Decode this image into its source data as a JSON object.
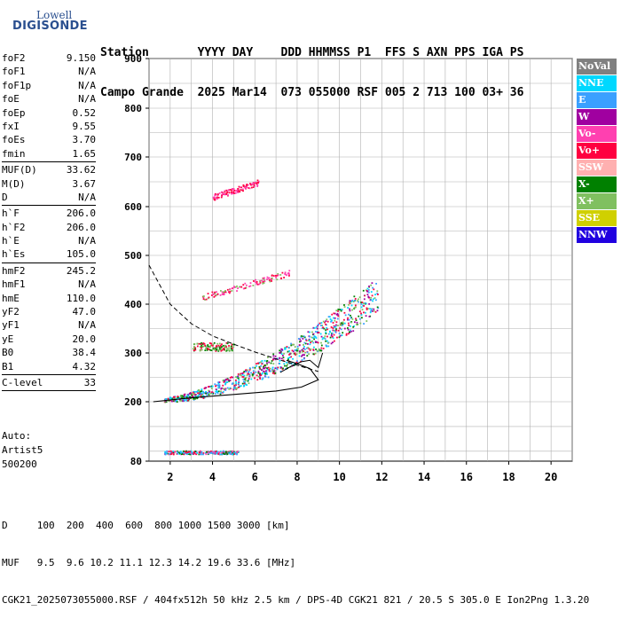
{
  "logo": {
    "line1": "Lowell",
    "line2": "DIGISONDE"
  },
  "header": {
    "row1": "Station       YYYY DAY    DDD HHMMSS P1  FFS S AXN PPS IGA PS",
    "row2": "Campo Grande  2025 Mar14  073 055000 RSF 005 2 713 100 03+ 36"
  },
  "params": [
    {
      "name": "foF2",
      "value": "9.150"
    },
    {
      "name": "foF1",
      "value": "N/A"
    },
    {
      "name": "foF1p",
      "value": "N/A"
    },
    {
      "name": "foE",
      "value": "N/A"
    },
    {
      "name": "foEp",
      "value": "0.52"
    },
    {
      "name": "fxI",
      "value": "9.55"
    },
    {
      "name": "foEs",
      "value": "3.70"
    },
    {
      "name": "fmin",
      "value": "1.65"
    },
    {
      "sep": true
    },
    {
      "name": "MUF(D)",
      "value": "33.62"
    },
    {
      "name": "M(D)",
      "value": "3.67"
    },
    {
      "name": "D",
      "value": "N/A"
    },
    {
      "sep": true
    },
    {
      "name": "h`F",
      "value": "206.0"
    },
    {
      "name": "h`F2",
      "value": "206.0"
    },
    {
      "name": "h`E",
      "value": "N/A"
    },
    {
      "name": "h`Es",
      "value": "105.0"
    },
    {
      "sep": true
    },
    {
      "name": "hmF2",
      "value": "245.2"
    },
    {
      "name": "hmF1",
      "value": "N/A"
    },
    {
      "name": "hmE",
      "value": "110.0"
    },
    {
      "name": "yF2",
      "value": "47.0"
    },
    {
      "name": "yF1",
      "value": "N/A"
    },
    {
      "name": "yE",
      "value": "20.0"
    },
    {
      "name": "B0",
      "value": "38.4"
    },
    {
      "name": "B1",
      "value": "4.32"
    },
    {
      "sep": true
    },
    {
      "name": "C-level",
      "value": "33"
    },
    {
      "sep": true
    }
  ],
  "auto": {
    "l1": "Auto:",
    "l2": "Artist5",
    "l3": "500200"
  },
  "legend": [
    {
      "label": "NoVal",
      "color": "#808080"
    },
    {
      "label": "NNE",
      "color": "#00d8ff"
    },
    {
      "label": "E",
      "color": "#3aa0ff"
    },
    {
      "label": "W",
      "color": "#a000a0"
    },
    {
      "label": "Vo-",
      "color": "#ff40b0"
    },
    {
      "label": "Vo+",
      "color": "#ff0040"
    },
    {
      "label": "SSW",
      "color": "#ffb0b0"
    },
    {
      "label": "X-",
      "color": "#008000"
    },
    {
      "label": "X+",
      "color": "#80c060"
    },
    {
      "label": "SSE",
      "color": "#d0d000"
    },
    {
      "label": "NNW",
      "color": "#2000e0"
    }
  ],
  "footer": {
    "row1": "D     100  200  400  600  800 1000 1500 3000 [km]",
    "row2": "MUF   9.5  9.6 10.2 11.1 12.3 14.2 19.6 33.6 [MHz]",
    "row3": "CGK21_2025073055000.RSF / 404fx512h 50 kHz 2.5 km / DPS-4D CGK21 821 / 20.5 S 305.0 E Ion2Png 1.3.20"
  },
  "chart_data": {
    "type": "scatter",
    "xlim": [
      1,
      21
    ],
    "ylim": [
      80,
      900
    ],
    "xticks": [
      2,
      4,
      6,
      8,
      10,
      12,
      14,
      16,
      18,
      20
    ],
    "yticks": [
      80,
      200,
      300,
      400,
      500,
      600,
      700,
      800,
      900
    ],
    "grid": true,
    "clusters": [
      {
        "name": "Es echo",
        "x": [
          1.7,
          5.2
        ],
        "y": [
          95,
          102
        ],
        "colors": [
          "#ff0040",
          "#00d8ff",
          "#3aa0ff",
          "#008000",
          "#ff40b0"
        ]
      },
      {
        "name": "F-layer O trace",
        "x": [
          1.7,
          11.8
        ],
        "y": [
          205,
          420
        ],
        "colors": [
          "#ff0040",
          "#008000",
          "#80c060",
          "#a000a0",
          "#3aa0ff",
          "#00d8ff"
        ]
      },
      {
        "name": "second hop Es",
        "x": [
          3.0,
          5.0
        ],
        "y": [
          305,
          322
        ],
        "colors": [
          "#ff0040",
          "#80c060",
          "#008000"
        ]
      },
      {
        "name": "second hop F",
        "x": [
          3.5,
          7.6
        ],
        "y": [
          415,
          465
        ],
        "colors": [
          "#ff0040",
          "#80c060",
          "#ff40b0"
        ]
      },
      {
        "name": "third hop",
        "x": [
          4.0,
          6.2
        ],
        "y": [
          620,
          650
        ],
        "colors": [
          "#ff0040",
          "#ff40b0"
        ]
      }
    ],
    "profile_curve": [
      [
        1.2,
        200
      ],
      [
        3,
        208
      ],
      [
        5,
        215
      ],
      [
        7,
        222
      ],
      [
        8.2,
        230
      ],
      [
        9.0,
        245
      ],
      [
        8.6,
        268
      ],
      [
        8.0,
        278
      ],
      [
        7.5,
        285
      ]
    ],
    "ordinary_trace": [
      [
        7.2,
        260
      ],
      [
        7.8,
        275
      ],
      [
        8.2,
        282
      ],
      [
        8.6,
        285
      ],
      [
        9.0,
        270
      ],
      [
        9.2,
        300
      ]
    ],
    "dashed_curve": [
      [
        1,
        480
      ],
      [
        2,
        400
      ],
      [
        3,
        360
      ],
      [
        4,
        335
      ],
      [
        5,
        318
      ],
      [
        6,
        302
      ],
      [
        7,
        288
      ],
      [
        8,
        275
      ],
      [
        9,
        262
      ]
    ]
  }
}
